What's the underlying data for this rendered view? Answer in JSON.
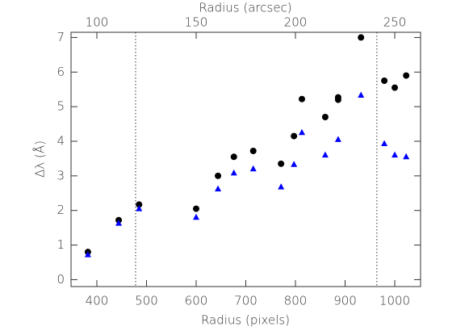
{
  "chart_data": {
    "type": "scatter",
    "xlabel": "Radius (pixels)",
    "x2label": "Radius (arcsec)",
    "ylabel": "Δλ (Å)",
    "xlim": [
      348,
      1052
    ],
    "xticks": [
      400,
      500,
      600,
      700,
      800,
      900,
      1000
    ],
    "x2lim": [
      87,
      263
    ],
    "x2ticks": [
      100,
      150,
      200,
      250
    ],
    "ylim": [
      -0.2,
      7.15
    ],
    "yticks": [
      0,
      1,
      2,
      3,
      4,
      5,
      6,
      7
    ],
    "vlines": [
      478,
      964
    ],
    "series": [
      {
        "color": "#000000",
        "marker": "circle",
        "x": [
          382,
          444,
          485,
          600,
          644,
          676,
          715,
          771,
          797,
          813,
          860,
          886,
          886,
          932,
          979,
          1000,
          1023
        ],
        "values": [
          0.8,
          1.72,
          2.17,
          2.05,
          3.0,
          3.55,
          3.72,
          3.35,
          4.15,
          5.22,
          4.7,
          5.2,
          5.27,
          7.0,
          5.75,
          5.55,
          5.9
        ]
      },
      {
        "color": "#0000ff",
        "marker": "triangle",
        "x": [
          382,
          444,
          485,
          600,
          644,
          676,
          715,
          771,
          797,
          813,
          860,
          886,
          932,
          979,
          1000,
          1023
        ],
        "values": [
          0.72,
          1.63,
          2.05,
          1.8,
          2.62,
          3.08,
          3.2,
          2.68,
          3.33,
          4.25,
          3.6,
          4.05,
          5.33,
          3.93,
          3.6,
          3.55
        ]
      }
    ]
  }
}
